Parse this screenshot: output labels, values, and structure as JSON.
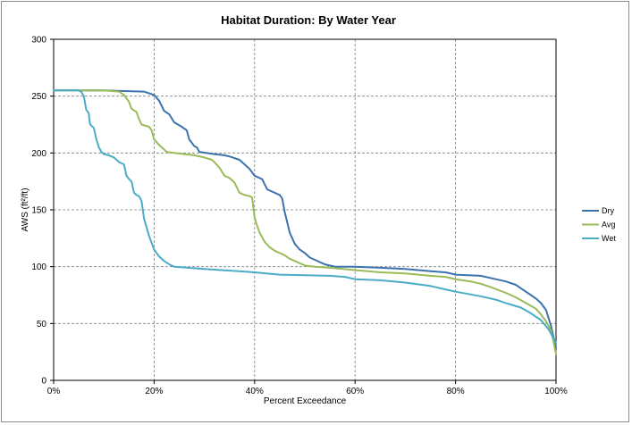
{
  "chart_data": {
    "type": "line",
    "title": "Habitat Duration: By Water Year",
    "xlabel": "Percent Exceedance",
    "ylabel": "AWS (ft²/ft)",
    "xlim": [
      0,
      100
    ],
    "ylim": [
      0,
      300
    ],
    "x_ticks": [
      0,
      20,
      40,
      60,
      80,
      100
    ],
    "x_tick_labels": [
      "0%",
      "20%",
      "40%",
      "60%",
      "80%",
      "100%"
    ],
    "y_ticks": [
      0,
      50,
      100,
      150,
      200,
      250,
      300
    ],
    "y_tick_labels": [
      "0",
      "50",
      "100",
      "150",
      "200",
      "250",
      "300"
    ],
    "grid": true,
    "legend_position": "right",
    "series": [
      {
        "name": "Dry",
        "color": "#3a73ad",
        "points": [
          [
            0,
            255
          ],
          [
            10,
            255
          ],
          [
            18,
            254
          ],
          [
            20,
            251
          ],
          [
            21,
            246
          ],
          [
            22,
            237
          ],
          [
            23,
            234
          ],
          [
            24,
            227
          ],
          [
            25.5,
            223
          ],
          [
            26.5,
            220
          ],
          [
            27,
            212
          ],
          [
            28,
            206
          ],
          [
            28.5,
            205
          ],
          [
            29,
            201
          ],
          [
            32,
            199
          ],
          [
            34,
            198
          ],
          [
            35,
            197
          ],
          [
            37,
            194
          ],
          [
            38,
            190
          ],
          [
            39,
            186
          ],
          [
            40,
            180
          ],
          [
            41.5,
            177
          ],
          [
            42.5,
            168
          ],
          [
            44,
            165
          ],
          [
            45,
            163
          ],
          [
            45.5,
            160
          ],
          [
            46,
            148
          ],
          [
            47,
            130
          ],
          [
            48,
            120
          ],
          [
            49,
            115
          ],
          [
            50,
            112
          ],
          [
            51,
            108
          ],
          [
            52,
            106
          ],
          [
            53,
            104
          ],
          [
            54,
            102
          ],
          [
            55,
            101
          ],
          [
            56,
            100
          ],
          [
            60,
            100
          ],
          [
            65,
            99
          ],
          [
            70,
            98
          ],
          [
            75,
            96
          ],
          [
            78,
            95
          ],
          [
            80,
            93
          ],
          [
            85,
            92
          ],
          [
            88,
            89
          ],
          [
            90,
            87
          ],
          [
            92,
            84
          ],
          [
            93,
            81
          ],
          [
            94,
            78
          ],
          [
            95,
            75
          ],
          [
            96,
            72
          ],
          [
            97,
            68
          ],
          [
            98,
            62
          ],
          [
            98.5,
            55
          ],
          [
            99,
            48
          ],
          [
            99.5,
            38
          ],
          [
            100,
            29
          ]
        ]
      },
      {
        "name": "Avg",
        "color": "#9bbb59",
        "points": [
          [
            0,
            255
          ],
          [
            10,
            255
          ],
          [
            13,
            254
          ],
          [
            14,
            251
          ],
          [
            15,
            245
          ],
          [
            15.5,
            239
          ],
          [
            16.5,
            236
          ],
          [
            17,
            230
          ],
          [
            17.5,
            225
          ],
          [
            19,
            223
          ],
          [
            19.5,
            220
          ],
          [
            20,
            212
          ],
          [
            21,
            207
          ],
          [
            22,
            203
          ],
          [
            22.5,
            201
          ],
          [
            24,
            200
          ],
          [
            26,
            199
          ],
          [
            28,
            198
          ],
          [
            30,
            196
          ],
          [
            31.5,
            194
          ],
          [
            32,
            192
          ],
          [
            33,
            187
          ],
          [
            34,
            180
          ],
          [
            35,
            178
          ],
          [
            36,
            174
          ],
          [
            37,
            165
          ],
          [
            38,
            163
          ],
          [
            39,
            162
          ],
          [
            39.5,
            161
          ],
          [
            40,
            143
          ],
          [
            40.5,
            136
          ],
          [
            41,
            130
          ],
          [
            42,
            122
          ],
          [
            43,
            117
          ],
          [
            44,
            114
          ],
          [
            45,
            112
          ],
          [
            46,
            110
          ],
          [
            47,
            107
          ],
          [
            48,
            105
          ],
          [
            49,
            103
          ],
          [
            50,
            101
          ],
          [
            52,
            100
          ],
          [
            55,
            99
          ],
          [
            60,
            97
          ],
          [
            65,
            95
          ],
          [
            70,
            94
          ],
          [
            75,
            92
          ],
          [
            78,
            91
          ],
          [
            80,
            89
          ],
          [
            83,
            87
          ],
          [
            85,
            85
          ],
          [
            87,
            82
          ],
          [
            90,
            77
          ],
          [
            92,
            73
          ],
          [
            94,
            68
          ],
          [
            96,
            63
          ],
          [
            97,
            58
          ],
          [
            98,
            52
          ],
          [
            99,
            44
          ],
          [
            99.5,
            34
          ],
          [
            100,
            23
          ]
        ]
      },
      {
        "name": "Wet",
        "color": "#4aacc6",
        "points": [
          [
            0,
            255
          ],
          [
            5,
            255
          ],
          [
            5.5,
            254
          ],
          [
            6,
            250
          ],
          [
            6.5,
            238
          ],
          [
            7,
            235
          ],
          [
            7.2,
            226
          ],
          [
            7.5,
            224
          ],
          [
            8,
            222
          ],
          [
            8.5,
            212
          ],
          [
            9,
            205
          ],
          [
            9.5,
            201
          ],
          [
            10,
            199
          ],
          [
            11,
            198
          ],
          [
            12,
            196
          ],
          [
            13,
            192
          ],
          [
            14,
            190
          ],
          [
            14.5,
            180
          ],
          [
            15,
            177
          ],
          [
            15.5,
            175
          ],
          [
            16,
            165
          ],
          [
            16.5,
            163
          ],
          [
            17,
            162
          ],
          [
            17.5,
            158
          ],
          [
            18,
            142
          ],
          [
            19,
            127
          ],
          [
            20,
            115
          ],
          [
            21,
            109
          ],
          [
            22,
            105
          ],
          [
            23,
            102
          ],
          [
            24,
            100
          ],
          [
            30,
            98
          ],
          [
            40,
            95
          ],
          [
            45,
            93
          ],
          [
            55,
            92
          ],
          [
            58,
            91
          ],
          [
            60,
            89
          ],
          [
            65,
            88
          ],
          [
            70,
            86
          ],
          [
            75,
            83
          ],
          [
            80,
            78
          ],
          [
            85,
            74
          ],
          [
            88,
            71
          ],
          [
            90,
            68
          ],
          [
            93,
            64
          ],
          [
            95,
            59
          ],
          [
            97,
            53
          ],
          [
            98.5,
            45
          ],
          [
            99.5,
            37
          ],
          [
            100,
            33
          ]
        ]
      }
    ]
  }
}
